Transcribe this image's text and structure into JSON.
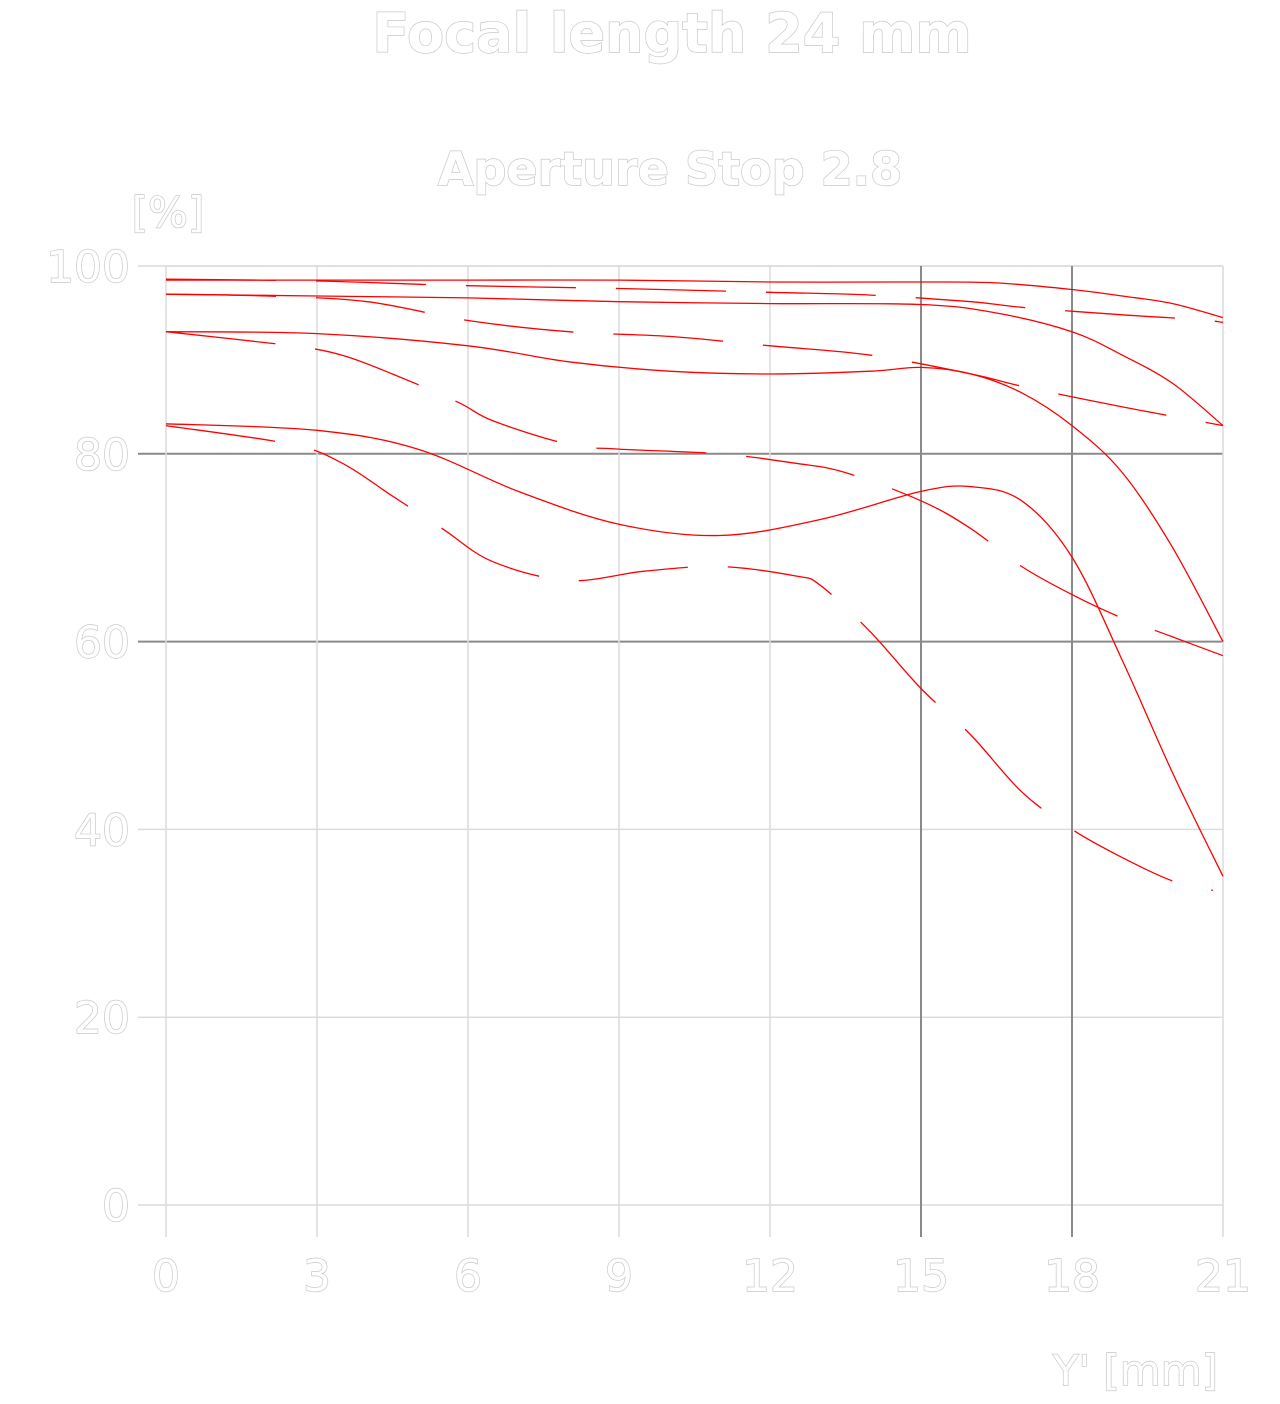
{
  "chart_data": {
    "type": "line",
    "title": "Focal length 24 mm",
    "subtitle": "Aperture Stop 2.8",
    "ylabel": "[%]",
    "xlabel": "Y' [mm]",
    "xlim": [
      0,
      21
    ],
    "ylim": [
      0,
      100
    ],
    "x_ticks": [
      "0",
      "3",
      "6",
      "9",
      "12",
      "15",
      "18",
      "21"
    ],
    "y_ticks": [
      "0",
      "20",
      "40",
      "60",
      "80",
      "100"
    ],
    "grid": true,
    "colors": {
      "series": "#ff0000",
      "grid_major": "#8a8a8a",
      "grid_minor": "#dcdcdc"
    },
    "series": [
      {
        "style": "solid",
        "points": [
          [
            0,
            98.5
          ],
          [
            3,
            98.5
          ],
          [
            6,
            98.5
          ],
          [
            9,
            98.5
          ],
          [
            12,
            98.3
          ],
          [
            15,
            98.3
          ],
          [
            16.5,
            98.2
          ],
          [
            18,
            97.5
          ],
          [
            19,
            96.8
          ],
          [
            20,
            96
          ],
          [
            21,
            94.5
          ]
        ]
      },
      {
        "style": "dashed",
        "points": [
          [
            0,
            98.6
          ],
          [
            3,
            98.4
          ],
          [
            6,
            97.9
          ],
          [
            9,
            97.6
          ],
          [
            12,
            97.2
          ],
          [
            14,
            96.9
          ],
          [
            16,
            96.2
          ],
          [
            17,
            95.6
          ],
          [
            19,
            94.8
          ],
          [
            20.5,
            94.3
          ],
          [
            21,
            94
          ]
        ]
      },
      {
        "style": "solid",
        "points": [
          [
            0,
            97
          ],
          [
            3,
            96.8
          ],
          [
            6,
            96.6
          ],
          [
            9,
            96.2
          ],
          [
            12,
            96
          ],
          [
            15,
            95.9
          ],
          [
            16.5,
            95
          ],
          [
            18,
            93
          ],
          [
            19,
            90.5
          ],
          [
            20,
            87.5
          ],
          [
            21,
            83
          ]
        ]
      },
      {
        "style": "dashed",
        "points": [
          [
            0,
            97
          ],
          [
            2,
            96.8
          ],
          [
            4,
            96.2
          ],
          [
            6,
            94.2
          ],
          [
            8,
            93
          ],
          [
            10,
            92.5
          ],
          [
            12,
            91.5
          ],
          [
            14,
            90.5
          ],
          [
            16,
            88.5
          ],
          [
            17,
            87.2
          ],
          [
            19,
            85
          ],
          [
            21,
            83
          ]
        ]
      },
      {
        "style": "solid",
        "points": [
          [
            0,
            93
          ],
          [
            3,
            92.8
          ],
          [
            6,
            91.5
          ],
          [
            8,
            89.8
          ],
          [
            10,
            88.8
          ],
          [
            12,
            88.5
          ],
          [
            14,
            88.8
          ],
          [
            15,
            89.2
          ],
          [
            16,
            88.5
          ],
          [
            17,
            86.5
          ],
          [
            18,
            83
          ],
          [
            19,
            78
          ],
          [
            20,
            70
          ],
          [
            21,
            60
          ]
        ]
      },
      {
        "style": "dashed",
        "points": [
          [
            0,
            93
          ],
          [
            2.5,
            91.5
          ],
          [
            3.5,
            90.5
          ],
          [
            4.5,
            88.5
          ],
          [
            5.8,
            85.5
          ],
          [
            6.5,
            83.5
          ],
          [
            8,
            81
          ],
          [
            9,
            80.5
          ],
          [
            11,
            80
          ],
          [
            12.5,
            79
          ],
          [
            13.5,
            78
          ],
          [
            15,
            75
          ],
          [
            16,
            72
          ],
          [
            17,
            68
          ],
          [
            18,
            65
          ],
          [
            19,
            62.5
          ],
          [
            20,
            60.5
          ],
          [
            21,
            58.5
          ]
        ]
      },
      {
        "style": "solid",
        "points": [
          [
            0,
            83.2
          ],
          [
            3,
            82.5
          ],
          [
            5,
            80.5
          ],
          [
            7,
            76
          ],
          [
            9,
            72.5
          ],
          [
            11,
            71.3
          ],
          [
            13,
            73
          ],
          [
            15,
            76
          ],
          [
            16,
            76.5
          ],
          [
            17,
            75
          ],
          [
            18,
            69
          ],
          [
            19,
            58
          ],
          [
            20,
            46
          ],
          [
            21,
            35
          ]
        ]
      },
      {
        "style": "dashed",
        "points": [
          [
            0,
            83
          ],
          [
            2.5,
            81
          ],
          [
            3.5,
            79
          ],
          [
            4.5,
            75.5
          ],
          [
            5.5,
            72
          ],
          [
            6.5,
            68.5
          ],
          [
            8,
            66.5
          ],
          [
            9.5,
            67.5
          ],
          [
            11,
            68
          ],
          [
            12.5,
            67
          ],
          [
            13,
            66
          ],
          [
            14,
            61
          ],
          [
            15,
            55
          ],
          [
            16,
            50
          ],
          [
            17,
            44
          ],
          [
            18,
            40
          ],
          [
            19,
            37
          ],
          [
            20,
            34.5
          ],
          [
            20.8,
            33.5
          ]
        ]
      }
    ]
  }
}
